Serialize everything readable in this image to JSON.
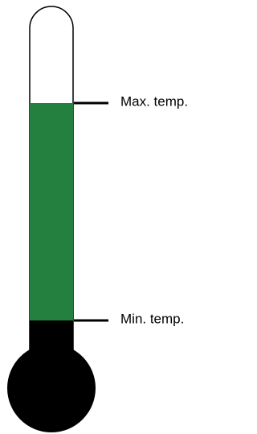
{
  "labels": {
    "max": "Max. temp.",
    "min": "Min. temp."
  }
}
